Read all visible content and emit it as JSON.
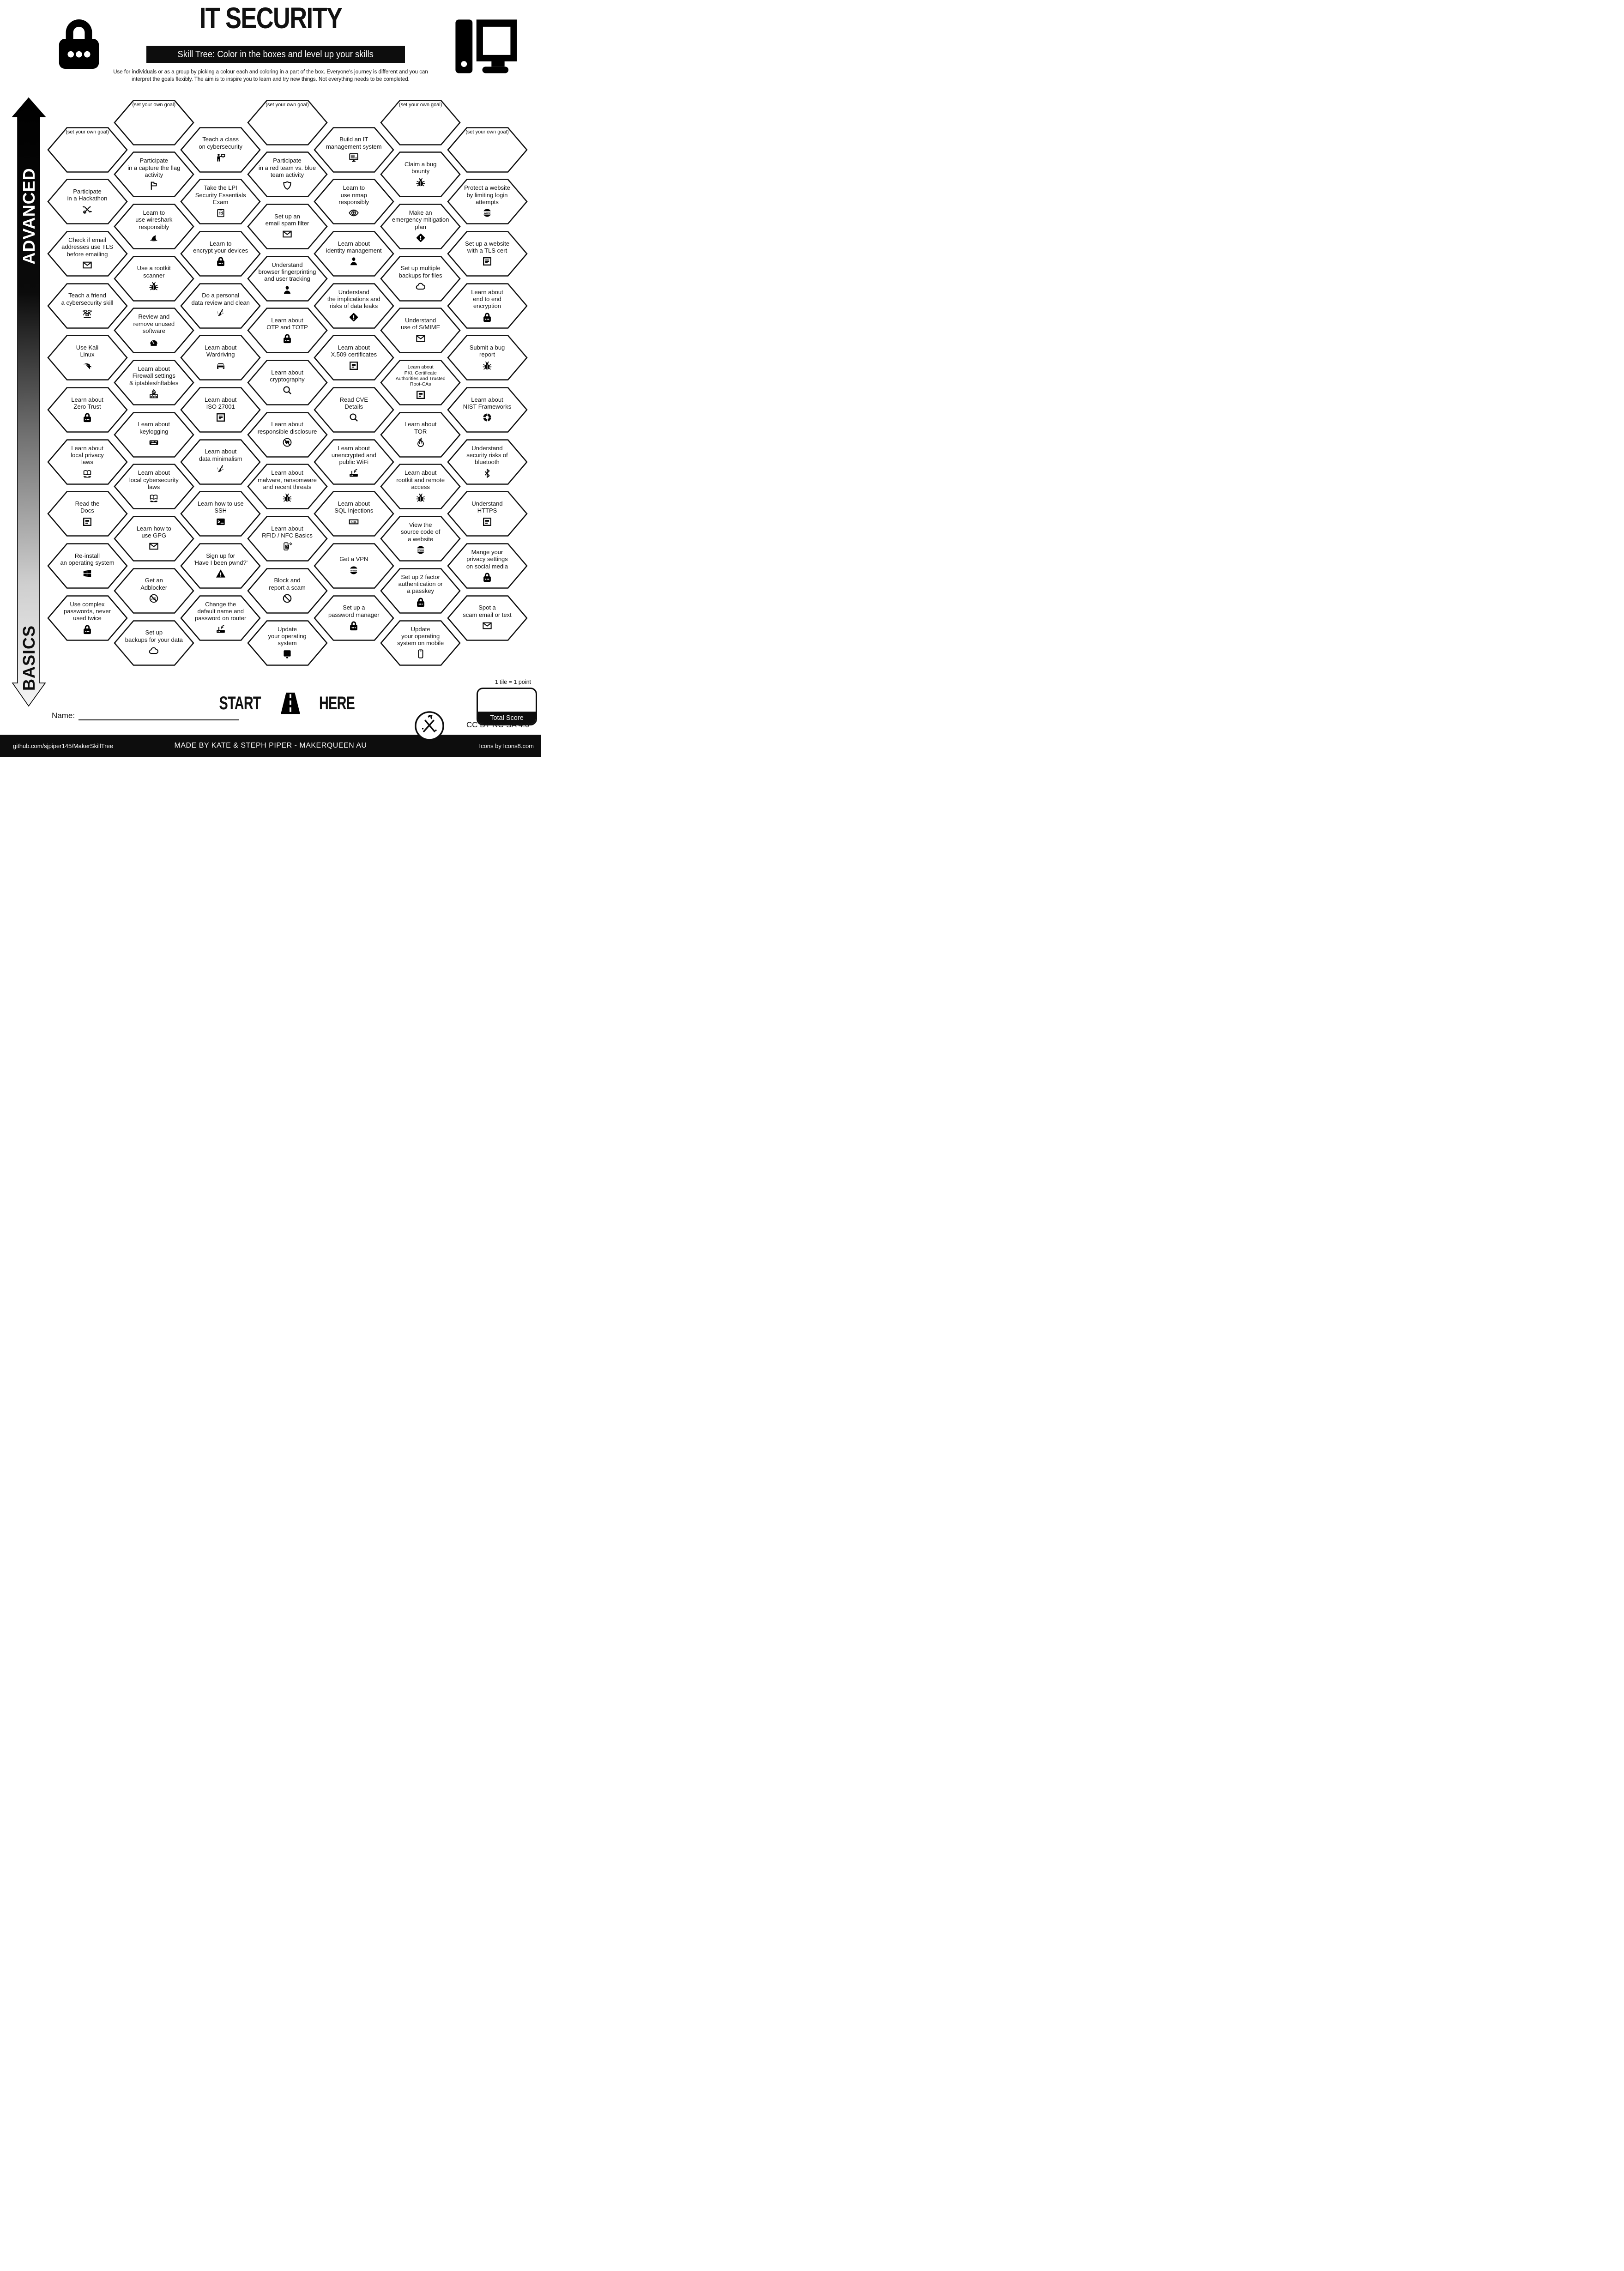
{
  "header": {
    "title": "IT SECURITY",
    "subtitle": "Skill Tree:  Color in the boxes and level up your skills",
    "description": "Use for individuals or as a group by picking a colour each and coloring in a part of the box.  Everyone's journey is different and you can interpret the goals flexibly.  The aim is to inspire you to learn and try new things. Not everything needs to be completed.",
    "left_logo": "padlock-icon",
    "right_logo": "desktop-computer-icon"
  },
  "axis": {
    "top": "ADVANCED",
    "bottom": "BASICS"
  },
  "start": {
    "left": "START",
    "right": "HERE",
    "icon": "road-icon"
  },
  "name_label": "Name:",
  "scoring": {
    "note": "1 tile = 1 point",
    "total_label": "Total Score"
  },
  "license": "CC BY-NC-SA 4.0",
  "footer": {
    "left": "github.com/sjpiper145/MakerSkillTree",
    "center": "MADE BY KATE & STEPH PIPER  -  MAKERQUEEN AU",
    "right": "Icons by Icons8.com"
  },
  "columns": [
    {
      "cells": [
        {
          "goal": true,
          "label": "(set your own goal)"
        },
        {
          "label": "Participate\nin a Hackathon",
          "icon": "tools"
        },
        {
          "label": "Check if email\naddresses use TLS\nbefore emailing",
          "icon": "mail"
        },
        {
          "label": "Teach a friend\na cybersecurity skill",
          "icon": "people"
        },
        {
          "label": "Use Kali\nLinux",
          "icon": "kali"
        },
        {
          "label": "Learn about\nZero Trust",
          "icon": "lock"
        },
        {
          "label": "Learn about\nlocal privacy\nlaws",
          "icon": "book"
        },
        {
          "label": "Read the\nDocs",
          "icon": "doc"
        },
        {
          "label": "Re-install\nan operating system",
          "icon": "windows"
        },
        {
          "label": "Use complex\npasswords, never\nused twice",
          "icon": "lock"
        }
      ]
    },
    {
      "cells": [
        {
          "goal": true,
          "label": "(set your own goal)"
        },
        {
          "label": "Participate\nin a capture the flag\nactivity",
          "icon": "flag"
        },
        {
          "label": "Learn to\nuse wireshark\nresponsibly",
          "icon": "fin"
        },
        {
          "label": "Use a rootkit\nscanner",
          "icon": "bug"
        },
        {
          "label": "Review and\nremove unused\nsoftware",
          "icon": "gauge"
        },
        {
          "label": "Learn about\nFirewall settings\n& iptables/nftables",
          "icon": "firewall"
        },
        {
          "label": "Learn about\nkeylogging",
          "icon": "keyboard"
        },
        {
          "label": "Learn about\nlocal cybersecurity\nlaws",
          "icon": "book"
        },
        {
          "label": "Learn how to\nuse GPG",
          "icon": "mail"
        },
        {
          "label": "Get an\nAdblocker",
          "icon": "adblock"
        },
        {
          "label": "Set up\nbackups for your data",
          "icon": "cloud"
        }
      ]
    },
    {
      "cells": [
        {
          "label": "Teach a class\non cybersecurity",
          "icon": "presenter"
        },
        {
          "label": "Take the LPI\nSecurity Essentials\nExam",
          "icon": "clipboard"
        },
        {
          "label": "Learn to\nencrypt your devices",
          "icon": "lock"
        },
        {
          "label": "Do a personal\ndata review and clean",
          "icon": "broom"
        },
        {
          "label": "Learn about\nWardriving",
          "icon": "car"
        },
        {
          "label": "Learn about\nISO 27001",
          "icon": "doc"
        },
        {
          "label": "Learn about\ndata minimalism",
          "icon": "broom"
        },
        {
          "label": "Learn how to use\nSSH",
          "icon": "terminal"
        },
        {
          "label": "Sign up for\n'Have I been pwnd?'",
          "icon": "warn3"
        },
        {
          "label": "Change the\ndefault name and\npassword on router",
          "icon": "router"
        }
      ]
    },
    {
      "cells": [
        {
          "goal": true,
          "label": "(set your own goal)"
        },
        {
          "label": "Participate\nin a red team vs. blue\nteam activity",
          "icon": "shield"
        },
        {
          "label": "Set up an\nemail spam filter",
          "icon": "mail"
        },
        {
          "label": "Understand\nbrowser fingerprinting\nand user tracking",
          "icon": "person"
        },
        {
          "label": "Learn about\nOTP and TOTP",
          "icon": "lock"
        },
        {
          "label": "Learn about\ncryptography",
          "icon": "search"
        },
        {
          "label": "Learn about\nresponsible disclosure",
          "icon": "chatban"
        },
        {
          "label": "Learn about\nmalware, ransomware\nand recent threats",
          "icon": "bug"
        },
        {
          "label": "Learn about\nRFID / NFC Basics",
          "icon": "phone-nfc"
        },
        {
          "label": "Block and\nreport a scam",
          "icon": "ban"
        },
        {
          "label": "Update\nyour operating\nsystem",
          "icon": "monitor"
        }
      ]
    },
    {
      "cells": [
        {
          "label": "Build an IT\nmanagement system",
          "icon": "monitor-list"
        },
        {
          "label": "Learn to\nuse nmap\nresponsibly",
          "icon": "eye"
        },
        {
          "label": "Learn about\nidentity management",
          "icon": "person"
        },
        {
          "label": "Understand\nthe implications and\nrisks of data leaks",
          "icon": "warn4"
        },
        {
          "label": "Learn about\nX.509 certificates",
          "icon": "doc"
        },
        {
          "label": "Read CVE\nDetails",
          "icon": "search"
        },
        {
          "label": "Learn about\nunencrypted and\npublic WiFi",
          "icon": "router"
        },
        {
          "label": "Learn about\nSQL Injections",
          "icon": "sql"
        },
        {
          "label": "Get a VPN",
          "icon": "www"
        },
        {
          "label": "Set up a\npassword manager",
          "icon": "lock"
        }
      ]
    },
    {
      "cells": [
        {
          "goal": true,
          "label": "(set your own goal)"
        },
        {
          "label": "Claim a bug\nbounty",
          "icon": "bug"
        },
        {
          "label": "Make an\nemergency mitigation\nplan",
          "icon": "warn4"
        },
        {
          "label": "Set up multiple\nbackups for files",
          "icon": "cloud"
        },
        {
          "label": "Understand\nuse of S/MIME",
          "icon": "mail"
        },
        {
          "label": "Learn about\nPKI, Certificate\nAuthorities and Trusted\nRoot-CAs",
          "icon": "doc"
        },
        {
          "label": "Learn about\nTOR",
          "icon": "onion"
        },
        {
          "label": "Learn about\nrootkit and remote\naccess",
          "icon": "bug"
        },
        {
          "label": "View the\nsource code of\na website",
          "icon": "www"
        },
        {
          "label": "Set up 2 factor\nauthentication or\na passkey",
          "icon": "lock"
        },
        {
          "label": "Update\nyour operating\nsystem on mobile",
          "icon": "phone"
        }
      ]
    },
    {
      "cells": [
        {
          "goal": true,
          "label": "(set your own goal)"
        },
        {
          "label": "Protect a website\nby limiting login\nattempts",
          "icon": "www"
        },
        {
          "label": "Set up a website\nwith a TLS cert",
          "icon": "doc"
        },
        {
          "label": "Learn about\nend to end\nencryption",
          "icon": "lock"
        },
        {
          "label": "Submit a bug\nreport",
          "icon": "bug"
        },
        {
          "label": "Learn about\nNIST Frameworks",
          "icon": "donut"
        },
        {
          "label": "Understand\nsecurity risks of\nbluetooth",
          "icon": "bluetooth"
        },
        {
          "label": "Understand\nHTTPS",
          "icon": "doc"
        },
        {
          "label": "Mange your\nprivacy settings\non social media",
          "icon": "lock"
        },
        {
          "label": "Spot a\nscam email or text",
          "icon": "mail"
        }
      ]
    }
  ]
}
